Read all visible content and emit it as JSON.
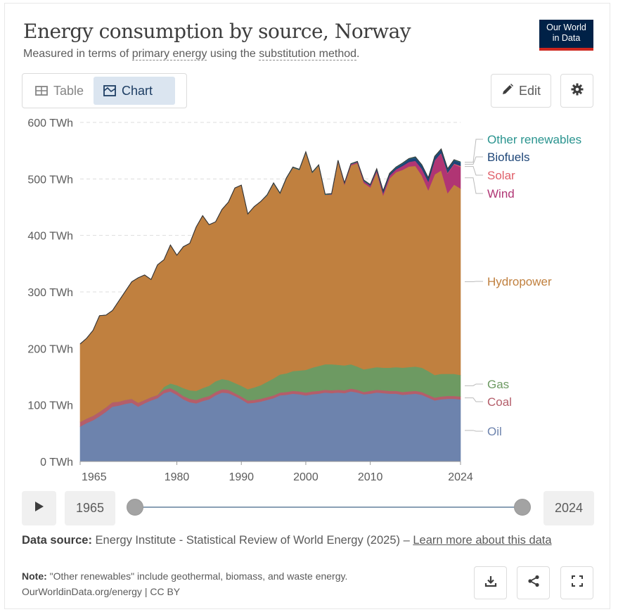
{
  "header": {
    "title": "Energy consumption by source, Norway",
    "subtitle_pre": "Measured in terms of ",
    "subtitle_link1": "primary energy",
    "subtitle_mid": " using the ",
    "subtitle_link2": "substitution method",
    "subtitle_post": ".",
    "logo_line1": "Our World",
    "logo_line2": "in Data"
  },
  "tabs": {
    "table_label": "Table",
    "chart_label": "Chart",
    "active": "chart"
  },
  "toolbar": {
    "edit_label": "Edit"
  },
  "controls": {
    "start_year": "1965",
    "end_year": "2024"
  },
  "footer": {
    "source_label": "Data source:",
    "source_text": " Energy Institute - Statistical Review of World Energy (2025) – ",
    "source_link": "Learn more about this data",
    "note_label": "Note:",
    "note_text": " \"Other renewables\" include geothermal, biomass, and waste energy.",
    "credit": "OurWorldinData.org/energy | CC BY"
  },
  "colors": {
    "oil": "#6d83ad",
    "coal": "#b45e6a",
    "gas": "#6d9a62",
    "hydropower": "#c0803f",
    "wind": "#b03574",
    "solar": "#e0606a",
    "biofuels": "#1d4577",
    "other_renewables": "#2a948f"
  },
  "chart_data": {
    "type": "area",
    "stacked": true,
    "title": "Energy consumption by source, Norway",
    "ylabel": "",
    "y_unit": "TWh",
    "ylim": [
      0,
      600
    ],
    "y_ticks": [
      0,
      100,
      200,
      300,
      400,
      500,
      600
    ],
    "y_tick_labels": [
      "0 TWh",
      "100 TWh",
      "200 TWh",
      "300 TWh",
      "400 TWh",
      "500 TWh",
      "600 TWh"
    ],
    "xlim": [
      1965,
      2024
    ],
    "x_ticks": [
      1965,
      1980,
      1990,
      2000,
      2010,
      2024
    ],
    "x_tick_labels": [
      "1965",
      "1980",
      "1990",
      "2000",
      "2010",
      "2024"
    ],
    "grid": "horizontal-dashed",
    "legend": "right-inline",
    "x": [
      1965,
      1966,
      1967,
      1968,
      1969,
      1970,
      1971,
      1972,
      1973,
      1974,
      1975,
      1976,
      1977,
      1978,
      1979,
      1980,
      1981,
      1982,
      1983,
      1984,
      1985,
      1986,
      1987,
      1988,
      1989,
      1990,
      1991,
      1992,
      1993,
      1994,
      1995,
      1996,
      1997,
      1998,
      1999,
      2000,
      2001,
      2002,
      2003,
      2004,
      2005,
      2006,
      2007,
      2008,
      2009,
      2010,
      2011,
      2012,
      2013,
      2014,
      2015,
      2016,
      2017,
      2018,
      2019,
      2020,
      2021,
      2022,
      2023,
      2024
    ],
    "series": [
      {
        "name": "Oil",
        "color": "#6d83ad",
        "values": [
          62,
          68,
          73,
          80,
          88,
          97,
          99,
          102,
          104,
          97,
          103,
          108,
          112,
          121,
          124,
          118,
          110,
          105,
          103,
          107,
          110,
          117,
          122,
          121,
          116,
          110,
          103,
          104,
          106,
          109,
          112,
          117,
          118,
          120,
          119,
          117,
          119,
          120,
          122,
          121,
          122,
          121,
          124,
          122,
          119,
          120,
          122,
          121,
          120,
          120,
          118,
          119,
          120,
          118,
          113,
          108,
          110,
          111,
          111,
          110
        ]
      },
      {
        "name": "Coal",
        "color": "#b45e6a",
        "values": [
          8,
          8,
          8,
          8,
          8,
          8,
          7,
          7,
          7,
          7,
          6,
          6,
          6,
          6,
          6,
          6,
          6,
          6,
          6,
          6,
          6,
          6,
          6,
          6,
          5,
          5,
          5,
          5,
          5,
          5,
          5,
          5,
          5,
          5,
          5,
          5,
          5,
          5,
          5,
          5,
          5,
          5,
          5,
          5,
          4,
          5,
          5,
          5,
          5,
          5,
          5,
          5,
          5,
          5,
          5,
          5,
          5,
          5,
          5,
          5
        ]
      },
      {
        "name": "Gas",
        "color": "#6d9a62",
        "values": [
          0,
          0,
          0,
          0,
          0,
          0,
          0,
          0,
          0,
          0,
          0,
          0,
          0,
          5,
          8,
          11,
          14,
          15,
          16,
          17,
          18,
          19,
          18,
          17,
          18,
          19,
          20,
          22,
          24,
          27,
          30,
          32,
          33,
          35,
          37,
          40,
          42,
          44,
          45,
          46,
          44,
          44,
          43,
          41,
          40,
          40,
          40,
          40,
          41,
          42,
          43,
          43,
          43,
          43,
          42,
          40,
          40,
          39,
          39,
          38
        ]
      },
      {
        "name": "Hydropower",
        "color": "#c0803f",
        "values": [
          138,
          142,
          151,
          170,
          163,
          162,
          178,
          192,
          207,
          221,
          221,
          208,
          230,
          225,
          245,
          230,
          250,
          260,
          290,
          305,
          285,
          282,
          300,
          315,
          345,
          355,
          310,
          320,
          325,
          330,
          345,
          320,
          345,
          360,
          355,
          385,
          345,
          355,
          300,
          300,
          360,
          320,
          352,
          360,
          330,
          320,
          345,
          305,
          335,
          345,
          350,
          355,
          355,
          340,
          320,
          355,
          360,
          320,
          335,
          330
        ]
      },
      {
        "name": "Wind",
        "color": "#b03574",
        "values": [
          0,
          0,
          0,
          0,
          0,
          0,
          0,
          0,
          0,
          0,
          0,
          0,
          0,
          0,
          0,
          0,
          0,
          0,
          0,
          0,
          0,
          0,
          0,
          0,
          0,
          0,
          0,
          0,
          0,
          0,
          0,
          0,
          0,
          0,
          0,
          0,
          0,
          0,
          0,
          1,
          1,
          2,
          2,
          2,
          3,
          3,
          3,
          4,
          5,
          5,
          7,
          8,
          9,
          12,
          15,
          25,
          30,
          35,
          36,
          38
        ]
      },
      {
        "name": "Solar",
        "color": "#e0606a",
        "values": [
          0,
          0,
          0,
          0,
          0,
          0,
          0,
          0,
          0,
          0,
          0,
          0,
          0,
          0,
          0,
          0,
          0,
          0,
          0,
          0,
          0,
          0,
          0,
          0,
          0,
          0,
          0,
          0,
          0,
          0,
          0,
          0,
          0,
          0,
          0,
          0,
          0,
          0,
          0,
          0,
          0,
          0,
          0,
          0,
          0,
          0,
          0,
          0,
          0,
          0,
          0,
          0,
          0,
          0,
          0,
          0,
          1,
          1,
          1,
          2
        ]
      },
      {
        "name": "Biofuels",
        "color": "#1d4577",
        "values": [
          0,
          0,
          0,
          0,
          0,
          0,
          0,
          0,
          0,
          0,
          0,
          0,
          0,
          0,
          0,
          0,
          0,
          0,
          0,
          0,
          0,
          0,
          0,
          0,
          0,
          0,
          0,
          0,
          0,
          0,
          0,
          0,
          0,
          0,
          0,
          0,
          0,
          0,
          0,
          0,
          0,
          0,
          0,
          0,
          1,
          1,
          2,
          3,
          3,
          3,
          4,
          5,
          6,
          6,
          6,
          6,
          6,
          6,
          6,
          6
        ]
      },
      {
        "name": "Other renewables",
        "color": "#2a948f",
        "values": [
          0,
          0,
          0,
          0,
          0,
          0,
          0,
          0,
          0,
          0,
          0,
          0,
          0,
          0,
          0,
          0,
          0,
          0,
          0,
          0,
          0,
          0,
          0,
          0,
          0,
          0,
          0,
          0,
          0,
          1,
          1,
          1,
          1,
          1,
          1,
          1,
          1,
          1,
          1,
          1,
          1,
          1,
          1,
          1,
          1,
          1,
          1,
          1,
          1,
          1,
          1,
          1,
          1,
          1,
          1,
          1,
          1,
          1,
          1,
          1
        ]
      }
    ]
  }
}
